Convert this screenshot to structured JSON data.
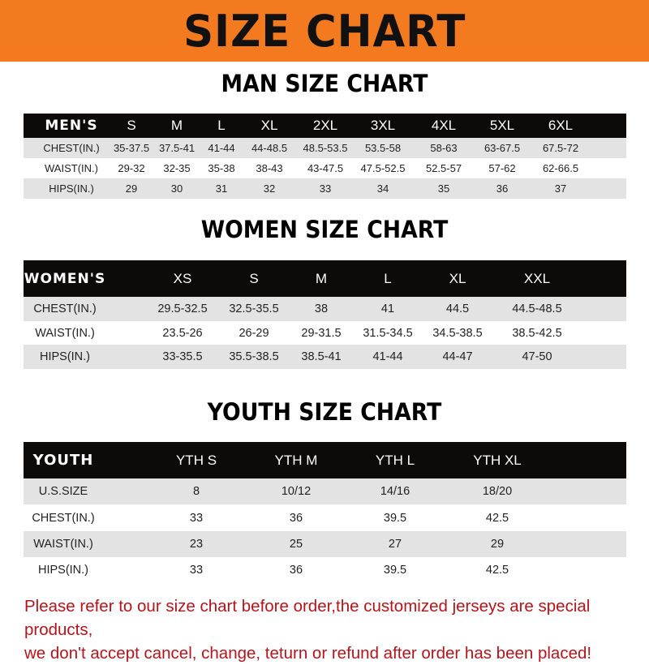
{
  "banner_title": "SIZE CHART",
  "sections": [
    {
      "title": "MAN SIZE CHART",
      "header": [
        "MEN'S",
        "S",
        "M",
        "L",
        "XL",
        "2XL",
        "3XL",
        "4XL",
        "5XL",
        "6XL"
      ],
      "rows": [
        [
          "CHEST(IN.)",
          "35-37.5",
          "37.5-41",
          "41-44",
          "44-48.5",
          "48.5-53.5",
          "53.5-58",
          "58-63",
          "63-67.5",
          "67.5-72"
        ],
        [
          "WAIST(IN.)",
          "29-32",
          "32-35",
          "35-38",
          "38-43",
          "43-47.5",
          "47.5-52.5",
          "52.5-57",
          "57-62",
          "62-66.5"
        ],
        [
          "HIPS(IN.)",
          "29",
          "30",
          "31",
          "32",
          "33",
          "34",
          "35",
          "36",
          "37"
        ]
      ]
    },
    {
      "title": "WOMEN SIZE CHART",
      "header": [
        "WOMEN'S",
        "XS",
        "S",
        "M",
        "L",
        "XL",
        "XXL"
      ],
      "rows": [
        [
          "CHEST(IN.)",
          "29.5-32.5",
          "32.5-35.5",
          "38",
          "41",
          "44.5",
          "44.5-48.5"
        ],
        [
          "WAIST(IN.)",
          "23.5-26",
          "26-29",
          "29-31.5",
          "31.5-34.5",
          "34.5-38.5",
          "38.5-42.5"
        ],
        [
          "HIPS(IN.)",
          "33-35.5",
          "35.5-38.5",
          "38.5-41",
          "41-44",
          "44-47",
          "47-50"
        ]
      ]
    },
    {
      "title": "YOUTH SIZE CHART",
      "header": [
        "YOUTH",
        "YTH S",
        "YTH M",
        "YTH L",
        "YTH XL"
      ],
      "rows": [
        [
          "U.S.SIZE",
          "8",
          "10/12",
          "14/16",
          "18/20"
        ],
        [
          "CHEST(IN.)",
          "33",
          "36",
          "39.5",
          "42.5"
        ],
        [
          "WAIST(IN.)",
          "23",
          "25",
          "27",
          "29"
        ],
        [
          "HIPS(IN.)",
          "33",
          "36",
          "39.5",
          "42.5"
        ]
      ]
    }
  ],
  "notice_line1": "Please refer to our size chart before order,the customized jerseys are special products,",
  "notice_line2": "we don't accept cancel, change, teturn or refund after order has been placed!",
  "colors": {
    "banner": "#f47a1f",
    "header_row": "#0d0a0a",
    "stripe": "#e3e3e3",
    "notice": "#b3151b"
  }
}
